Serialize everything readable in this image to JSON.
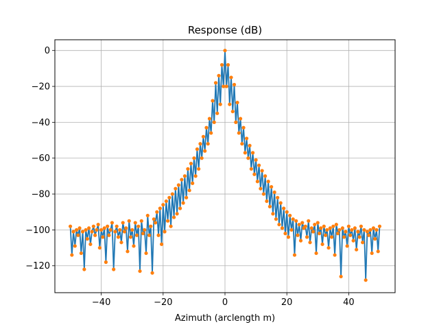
{
  "chart_data": {
    "type": "scatter",
    "title": "Response (dB)",
    "xlabel": "Azimuth (arclength m)",
    "ylabel": "",
    "xlim": [
      -55,
      55
    ],
    "ylim": [
      -135,
      6
    ],
    "x_ticks": [
      -40,
      -20,
      0,
      20,
      40
    ],
    "x_tick_labels": [
      "−40",
      "−20",
      "0",
      "20",
      "40"
    ],
    "y_ticks": [
      0,
      -20,
      -40,
      -60,
      -80,
      -100,
      -120
    ],
    "y_tick_labels": [
      "0",
      "−20",
      "−40",
      "−60",
      "−80",
      "−100",
      "−120"
    ],
    "grid": true,
    "colors": {
      "stem": "#1f77b4",
      "marker": "#ff7f0e"
    },
    "series": [
      {
        "x": [
          -50.0,
          -49.5,
          -49.0,
          -48.5,
          -48.0,
          -47.5,
          -47.0,
          -46.5,
          -46.0,
          -45.5,
          -45.0,
          -44.5,
          -44.0,
          -43.5,
          -43.0,
          -42.5,
          -42.0,
          -41.5,
          -41.0,
          -40.5,
          -40.0,
          -39.5,
          -39.0,
          -38.5,
          -38.0,
          -37.5,
          -37.0,
          -36.5,
          -36.0,
          -35.5,
          -35.0,
          -34.5,
          -34.0,
          -33.5,
          -33.0,
          -32.5,
          -32.0,
          -31.5,
          -31.0,
          -30.5,
          -30.0,
          -29.5,
          -29.0,
          -28.5,
          -28.0,
          -27.5,
          -27.0,
          -26.5,
          -26.0,
          -25.5,
          -25.0,
          -24.5,
          -24.0,
          -23.5,
          -23.0,
          -22.5,
          -22.0,
          -21.5,
          -21.0,
          -20.5,
          -20.0,
          -19.5,
          -19.0,
          -18.5,
          -18.0,
          -17.5,
          -17.0,
          -16.5,
          -16.0,
          -15.5,
          -15.0,
          -14.5,
          -14.0,
          -13.5,
          -13.0,
          -12.5,
          -12.0,
          -11.5,
          -11.0,
          -10.5,
          -10.0,
          -9.5,
          -9.0,
          -8.5,
          -8.0,
          -7.5,
          -7.0,
          -6.5,
          -6.0,
          -5.5,
          -5.0,
          -4.5,
          -4.0,
          -3.5,
          -3.0,
          -2.5,
          -2.0,
          -1.5,
          -1.0,
          -0.5,
          0.0,
          0.5,
          1.0,
          1.5,
          2.0,
          2.5,
          3.0,
          3.5,
          4.0,
          4.5,
          5.0,
          5.5,
          6.0,
          6.5,
          7.0,
          7.5,
          8.0,
          8.5,
          9.0,
          9.5,
          10.0,
          10.5,
          11.0,
          11.5,
          12.0,
          12.5,
          13.0,
          13.5,
          14.0,
          14.5,
          15.0,
          15.5,
          16.0,
          16.5,
          17.0,
          17.5,
          18.0,
          18.5,
          19.0,
          19.5,
          20.0,
          20.5,
          21.0,
          21.5,
          22.0,
          22.5,
          23.0,
          23.5,
          24.0,
          24.5,
          25.0,
          25.5,
          26.0,
          26.5,
          27.0,
          27.5,
          28.0,
          28.5,
          29.0,
          29.5,
          30.0,
          30.5,
          31.0,
          31.5,
          32.0,
          32.5,
          33.0,
          33.5,
          34.0,
          34.5,
          35.0,
          35.5,
          36.0,
          36.5,
          37.0,
          37.5,
          38.0,
          38.5,
          39.0,
          39.5,
          40.0,
          40.5,
          41.0,
          41.5,
          42.0,
          42.5,
          43.0,
          43.5,
          44.0,
          44.5,
          45.0,
          45.5,
          46.0,
          46.5,
          47.0,
          47.5,
          48.0,
          48.5,
          49.0,
          49.5,
          50.0
        ],
        "y": [
          -98,
          -114,
          -101,
          -109,
          -100,
          -103,
          -99,
          -113,
          -101,
          -122,
          -100,
          -105,
          -99,
          -108,
          -101,
          -98,
          -103,
          -100,
          -97,
          -110,
          -100,
          -104,
          -99,
          -118,
          -98,
          -103,
          -100,
          -96,
          -122,
          -101,
          -98,
          -104,
          -100,
          -107,
          -96,
          -101,
          -99,
          -112,
          -95,
          -104,
          -100,
          -109,
          -96,
          -103,
          -98,
          -123,
          -95,
          -102,
          -100,
          -113,
          -92,
          -103,
          -98,
          -124,
          -94,
          -96,
          -90,
          -103,
          -88,
          -108,
          -86,
          -101,
          -84,
          -95,
          -82,
          -98,
          -80,
          -93,
          -77,
          -91,
          -75,
          -88,
          -72,
          -85,
          -70,
          -82,
          -66,
          -78,
          -63,
          -74,
          -60,
          -70,
          -55,
          -66,
          -52,
          -60,
          -48,
          -56,
          -43,
          -52,
          -38,
          -46,
          -28,
          -40,
          -18,
          -35,
          -14,
          -30,
          -8,
          -20,
          0,
          -20,
          -8,
          -30,
          -15,
          -34,
          -19,
          -40,
          -29,
          -46,
          -38,
          -52,
          -43,
          -57,
          -49,
          -60,
          -53,
          -66,
          -57,
          -69,
          -61,
          -73,
          -64,
          -77,
          -67,
          -80,
          -70,
          -84,
          -73,
          -87,
          -76,
          -91,
          -79,
          -94,
          -82,
          -97,
          -85,
          -99,
          -88,
          -102,
          -90,
          -104,
          -92,
          -100,
          -94,
          -114,
          -95,
          -103,
          -97,
          -106,
          -96,
          -99,
          -98,
          -104,
          -95,
          -107,
          -99,
          -101,
          -97,
          -113,
          -96,
          -102,
          -99,
          -108,
          -98,
          -103,
          -100,
          -110,
          -99,
          -104,
          -98,
          -114,
          -97,
          -102,
          -100,
          -126,
          -99,
          -104,
          -101,
          -109,
          -98,
          -103,
          -100,
          -106,
          -99,
          -111,
          -101,
          -104,
          -98,
          -107,
          -100,
          -128,
          -101,
          -103,
          -100,
          -113,
          -99,
          -105,
          -100,
          -112,
          -98
        ]
      }
    ]
  }
}
